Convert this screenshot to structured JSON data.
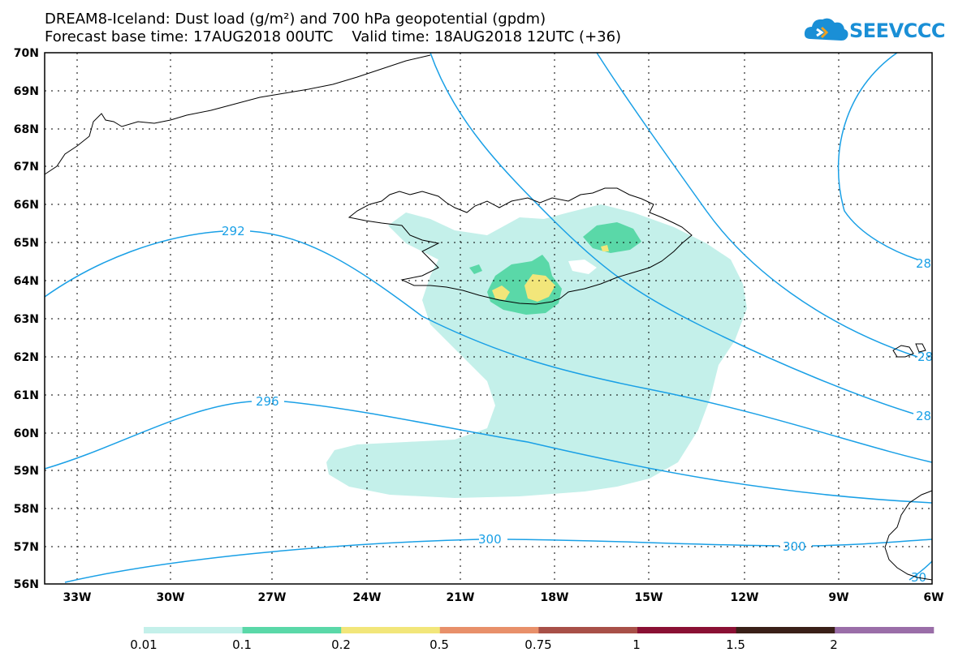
{
  "title": {
    "line1": "DREAM8-Iceland: Dust load (g/m²) and 700 hPa geopotential (gpdm)",
    "line2": "Forecast base time: 17AUG2018 00UTC    Valid time: 18AUG2018 12UTC (+36)"
  },
  "logo": {
    "text": "SEEVCCC",
    "color": "#1a8fd6"
  },
  "axes": {
    "lat_labels": [
      "70N",
      "69N",
      "68N",
      "67N",
      "66N",
      "65N",
      "64N",
      "63N",
      "62N",
      "61N",
      "60N",
      "59N",
      "58N",
      "57N",
      "56N"
    ],
    "lon_labels": [
      "33W",
      "30W",
      "27W",
      "24W",
      "21W",
      "18W",
      "15W",
      "12W",
      "9W",
      "6W"
    ]
  },
  "contours": {
    "color": "#1aa0e6",
    "labels": [
      "292",
      "296",
      "300",
      "300",
      "28",
      "28",
      "28",
      "30"
    ]
  },
  "colorbar": {
    "labels": [
      "0.01",
      "0.1",
      "0.2",
      "0.5",
      "0.75",
      "1",
      "1.5",
      "2"
    ],
    "colors": [
      "#c4f0ea",
      "#5ad8a8",
      "#f2e67a",
      "#e8906a",
      "#a85048",
      "#8a1034",
      "#3a2018",
      "#9a6ea8"
    ]
  }
}
